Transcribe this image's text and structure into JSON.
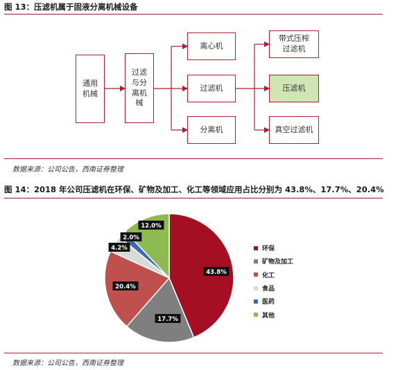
{
  "figure13": {
    "title": "图 13：压滤机属于固液分离机械设备",
    "source": "数据来源：公司公告，西南证券整理",
    "boxes": {
      "general": "通用机械",
      "separation": "过滤与分离机械",
      "centrifuge": "离心机",
      "filter": "过滤机",
      "separator": "分离机",
      "belt_press": "带式压榨过滤机",
      "filter_press": "压滤机",
      "vacuum_filter": "真空过滤机"
    },
    "colors": {
      "border": "#b01d2f",
      "highlight": "#cfe6b4"
    }
  },
  "figure14": {
    "title": "图 14：2018 年公司压滤机在环保、矿物及加工、化工等领域应用占比分别为 43.8%、17.7%、20.4%",
    "source": "数据来源：公司公告，西南证券整理",
    "chart_data": {
      "type": "pie",
      "title": "",
      "slices": [
        {
          "name": "环保",
          "value": 43.8,
          "label": "43.8%",
          "color": "#a50f24"
        },
        {
          "name": "矿物及加工",
          "value": 17.7,
          "label": "17.7%",
          "color": "#7f7f7f"
        },
        {
          "name": "化工",
          "value": 20.4,
          "label": "20.4%",
          "color": "#c0504d"
        },
        {
          "name": "食品",
          "value": 4.2,
          "label": "4.2%",
          "color": "#d9d9d9"
        },
        {
          "name": "医药",
          "value": 2.0,
          "label": "2.0%",
          "color": "#3a6ab4"
        },
        {
          "name": "其他",
          "value": 12.0,
          "label": "12.0%",
          "color": "#8dbb50"
        }
      ],
      "legend_position": "right"
    }
  }
}
